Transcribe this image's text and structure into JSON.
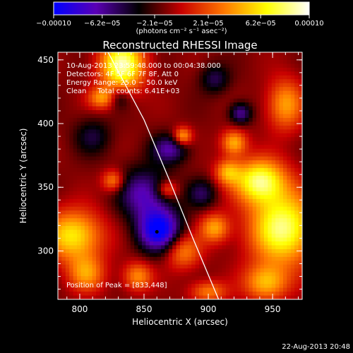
{
  "chart_data": {
    "type": "heatmap",
    "title": "Reconstructed RHESSI Image",
    "xlabel": "Heliocentric X (arcsec)",
    "ylabel": "Heliocentric Y (arcsec)",
    "xlim": [
      783,
      973
    ],
    "ylim": [
      262,
      456
    ],
    "x_ticks": [
      800,
      850,
      900,
      950
    ],
    "y_ticks": [
      300,
      350,
      400,
      450
    ],
    "x_tick_labels": [
      "800",
      "850",
      "900",
      "950"
    ],
    "y_tick_labels": [
      "300",
      "350",
      "400",
      "450"
    ],
    "colorbar": {
      "tick_labels": [
        "−0.00010",
        "−6.2e−05",
        "−2.1e−05",
        "2.1e−05",
        "6.2e−05",
        "0.00010"
      ],
      "tick_values": [
        -0.0001,
        -6.2e-05,
        -2.1e-05,
        2.1e-05,
        6.2e-05,
        0.0001
      ],
      "range": [
        -0.0001,
        0.0001
      ],
      "unit_label": "(photons cm⁻² s⁻¹ asec⁻²)",
      "colormap": [
        "#0000ff",
        "#5a00b4",
        "#000000",
        "#c80000",
        "#ff7800",
        "#ffff00",
        "#ffffff"
      ]
    },
    "info_lines": [
      "10-Aug-2013 23:59:48.000 to 00:04:38.000",
      "Detectors: 4F 5F 6F 7F 8F, Att 0",
      "Energy Range: 25.0 − 50.0 keV",
      "Clean     Total counts: 6.41E+03"
    ],
    "peak_label": "Position of Peak = [833,448]",
    "peak_position": [
      833,
      448
    ],
    "limb_points": [
      [
        822,
        456
      ],
      [
        850,
        403
      ],
      [
        870,
        355
      ],
      [
        888,
        310
      ],
      [
        908,
        262
      ]
    ],
    "minimum_marker": [
      860,
      315
    ],
    "sources": [
      {
        "x": 833,
        "y": 446,
        "rx": 12,
        "ry": 14,
        "amp": 1.0
      },
      {
        "x": 818,
        "y": 420,
        "rx": 8,
        "ry": 6,
        "amp": 0.5
      },
      {
        "x": 826,
        "y": 355,
        "rx": 6,
        "ry": 6,
        "amp": 0.5
      },
      {
        "x": 880,
        "y": 390,
        "rx": 5,
        "ry": 5,
        "amp": 0.6
      },
      {
        "x": 920,
        "y": 385,
        "rx": 7,
        "ry": 7,
        "amp": 0.6
      },
      {
        "x": 960,
        "y": 415,
        "rx": 10,
        "ry": 14,
        "amp": 0.55
      },
      {
        "x": 940,
        "y": 355,
        "rx": 14,
        "ry": 12,
        "amp": 0.9
      },
      {
        "x": 915,
        "y": 362,
        "rx": 7,
        "ry": 7,
        "amp": 0.5
      },
      {
        "x": 868,
        "y": 348,
        "rx": 6,
        "ry": 5,
        "amp": 0.45
      },
      {
        "x": 795,
        "y": 312,
        "rx": 16,
        "ry": 14,
        "amp": 0.75
      },
      {
        "x": 805,
        "y": 282,
        "rx": 10,
        "ry": 10,
        "amp": 0.5
      },
      {
        "x": 845,
        "y": 280,
        "rx": 8,
        "ry": 8,
        "amp": 0.5
      },
      {
        "x": 880,
        "y": 300,
        "rx": 10,
        "ry": 10,
        "amp": 0.5
      },
      {
        "x": 905,
        "y": 318,
        "rx": 8,
        "ry": 8,
        "amp": 0.55
      },
      {
        "x": 958,
        "y": 318,
        "rx": 18,
        "ry": 20,
        "amp": 0.95
      },
      {
        "x": 945,
        "y": 275,
        "rx": 12,
        "ry": 10,
        "amp": 0.6
      },
      {
        "x": 900,
        "y": 268,
        "rx": 10,
        "ry": 6,
        "amp": 0.45
      },
      {
        "x": 830,
        "y": 420,
        "rx": 6,
        "ry": 6,
        "amp": -0.35
      },
      {
        "x": 870,
        "y": 380,
        "rx": 10,
        "ry": 8,
        "amp": -0.5
      },
      {
        "x": 850,
        "y": 345,
        "rx": 14,
        "ry": 14,
        "amp": -0.55
      },
      {
        "x": 862,
        "y": 316,
        "rx": 12,
        "ry": 12,
        "amp": -0.9
      },
      {
        "x": 925,
        "y": 408,
        "rx": 6,
        "ry": 6,
        "amp": -0.5
      },
      {
        "x": 810,
        "y": 390,
        "rx": 10,
        "ry": 10,
        "amp": -0.3
      },
      {
        "x": 905,
        "y": 435,
        "rx": 8,
        "ry": 8,
        "amp": -0.35
      },
      {
        "x": 895,
        "y": 345,
        "rx": 8,
        "ry": 8,
        "amp": -0.35
      }
    ]
  },
  "footer": {
    "timestamp": "22-Aug-2013 20:48"
  }
}
